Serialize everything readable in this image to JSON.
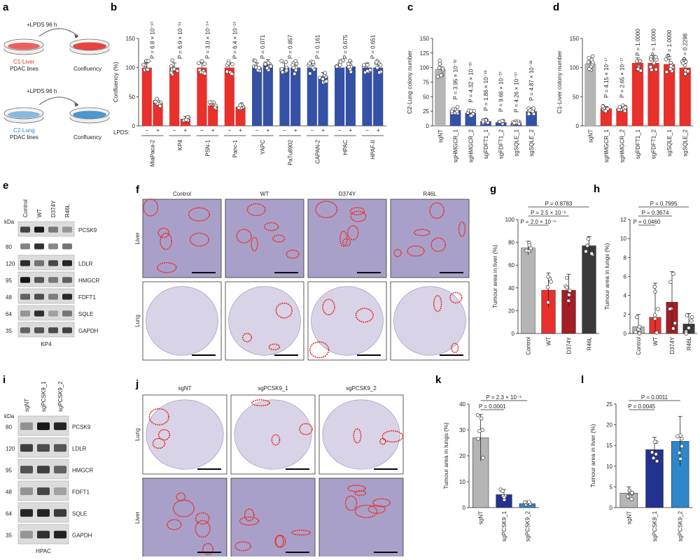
{
  "colors": {
    "red": "#e8302c",
    "blue": "#3451a6",
    "grey": "#b5b5b5",
    "darkred": "#a51e25",
    "darkgrey": "#3a3a3a",
    "navy": "#23318f",
    "lightblue": "#2f86c8",
    "tissue": "#a9a0c9",
    "tissue_light": "#d8d3e6"
  },
  "panel_a": {
    "letter": "a",
    "top": {
      "arrow": "+LPDS 96 h",
      "line1": "C1-Liver",
      "line2": "PDAC lines",
      "result": "Confluency"
    },
    "bottom": {
      "arrow": "+LPDS 96 h",
      "line1": "C2-Lung",
      "line2": "PDAC lines",
      "result": "Confluency"
    }
  },
  "blots": {
    "e": {
      "letter": "e",
      "kda": "kDa",
      "lanes": [
        "Control",
        "WT",
        "D374Y",
        "R46L"
      ],
      "rows": [
        {
          "mw": "",
          "name": "PCSK9"
        },
        {
          "mw": "80",
          "name": ""
        },
        {
          "mw": "120",
          "name": "LDLR"
        },
        {
          "mw": "95",
          "name": "HMGCR"
        },
        {
          "mw": "48",
          "name": "FDFT1"
        },
        {
          "mw": "64",
          "name": "SQLE"
        },
        {
          "mw": "35",
          "name": "GAPDH"
        }
      ],
      "cell": "KP4"
    },
    "i": {
      "letter": "i",
      "kda": "kDa",
      "lanes": [
        "sgNT",
        "sgPCSK9_1",
        "sgPCSK9_2"
      ],
      "rows": [
        {
          "mw": "80",
          "name": "PCSK9"
        },
        {
          "mw": "120",
          "name": "LDLR"
        },
        {
          "mw": "95",
          "name": "HMGCR"
        },
        {
          "mw": "48",
          "name": "FDFT1"
        },
        {
          "mw": "64",
          "name": "SQLE"
        },
        {
          "mw": "35",
          "name": "GAPDH"
        }
      ],
      "cell": "HPAC"
    }
  },
  "histo": {
    "f": {
      "letter": "f",
      "cols": [
        "Control",
        "WT",
        "D374Y",
        "R46L"
      ],
      "rows": [
        "Liver",
        "Lung"
      ]
    },
    "j": {
      "letter": "j",
      "cols": [
        "sgNT",
        "sgPCSK9_1",
        "sgPCSK9_2"
      ],
      "rows": [
        "Lung",
        "Liver"
      ]
    }
  },
  "chart_data": [
    {
      "id": "b",
      "letter": "b",
      "type": "bar",
      "ylabel": "Confluency (%)",
      "ylim": [
        0,
        150
      ],
      "yticks": [
        0,
        50,
        100,
        150
      ],
      "lpds_label": "LPDS:",
      "categories": [
        "MiaPaca-2",
        "KP4",
        "PSN-1",
        "Panc-1",
        "YAPC",
        "PaTu8902",
        "CAPAN-2",
        "HPAC",
        "HPAF-II"
      ],
      "group": [
        "red",
        "red",
        "red",
        "red",
        "blue",
        "blue",
        "blue",
        "blue",
        "blue"
      ],
      "minus": [
        100,
        100,
        100,
        100,
        100,
        100,
        100,
        100,
        100
      ],
      "plus": [
        40,
        12,
        35,
        33,
        105,
        100,
        85,
        102,
        100
      ],
      "pvalues": [
        "P = 6.8 × 10⁻¹³",
        "P = 6.9 × 10⁻¹¹",
        "P = 3.0 × 10⁻¹⁴",
        "P = 6.4 × 10⁻¹³",
        "P = 0.071",
        "P = 0.857",
        "P = 0.161",
        "P = 0.675",
        "P = 0.651"
      ]
    },
    {
      "id": "c",
      "letter": "c",
      "type": "bar",
      "ylabel": "C2-Lung colony number",
      "ylim": [
        0,
        150
      ],
      "yticks": [
        0,
        25,
        50,
        75,
        100,
        125,
        150
      ],
      "categories": [
        "sgNT",
        "sgHMGCR_1",
        "sgHMGCR_2",
        "sgFDFT1_1",
        "sgFDFT1_2",
        "sgSQLE_1",
        "sgSQLE_2"
      ],
      "values": [
        98,
        27,
        22,
        8,
        6,
        5,
        25
      ],
      "colors": [
        "grey",
        "blue",
        "blue",
        "blue",
        "blue",
        "blue",
        "blue"
      ],
      "pvalues": [
        "",
        "P = 3.95 × 10⁻³²",
        "P = 4.32 × 10⁻³³",
        "P = 1.86 × 10⁻³⁶",
        "P = 9.66 × 10⁻³⁷",
        "P = 4.26 × 10⁻³⁷",
        "P = 4.87 × 10⁻³²"
      ]
    },
    {
      "id": "d",
      "letter": "d",
      "type": "bar",
      "ylabel": "C1-Liver colony number",
      "ylim": [
        0,
        150
      ],
      "yticks": [
        0,
        50,
        100,
        150
      ],
      "categories": [
        "sgNT",
        "sgHMGCR_1",
        "sgHMGCR_2",
        "sgFDFT1_1",
        "sgFDFT1_2",
        "sgSQLE_1",
        "sgSQLE_2"
      ],
      "values": [
        107,
        30,
        30,
        108,
        108,
        106,
        100
      ],
      "colors": [
        "grey",
        "red",
        "red",
        "red",
        "red",
        "red",
        "red"
      ],
      "pvalues": [
        "",
        "P = 4.15 × 10⁻¹⁷",
        "P = 2.65 × 10⁻¹⁷",
        "P = 1.0000",
        "P = 1.0000",
        "P = 1.0000",
        "P = 0.2298"
      ]
    },
    {
      "id": "g",
      "letter": "g",
      "type": "bar",
      "ylabel": "Tumour area in liver (%)",
      "ylim": [
        0,
        100
      ],
      "yticks": [
        0,
        20,
        40,
        60,
        80,
        100
      ],
      "categories": [
        "Control",
        "WT",
        "D374Y",
        "R46L"
      ],
      "values": [
        75,
        38,
        38,
        77
      ],
      "errors": [
        6,
        15,
        14,
        8
      ],
      "colors": [
        "grey",
        "red",
        "darkred",
        "darkgrey"
      ],
      "brackets": [
        {
          "from": 0,
          "to": 1,
          "label": "P = 2.0 × 10⁻⁶"
        },
        {
          "from": 0,
          "to": 2,
          "label": "P = 2.5 × 10⁻⁶"
        },
        {
          "from": 0,
          "to": 3,
          "label": "P = 0.8783"
        }
      ]
    },
    {
      "id": "h",
      "letter": "h",
      "type": "bar",
      "ylabel": "Tumour area in lungs (%)",
      "ylim": [
        0,
        12
      ],
      "yticks": [
        0,
        2,
        4,
        6,
        8,
        10,
        12
      ],
      "categories": [
        "Control",
        "WT",
        "D374Y",
        "R46L"
      ],
      "values": [
        0.7,
        1.7,
        3.3,
        1.0
      ],
      "errors": [
        1.3,
        3.6,
        3.2,
        1.1
      ],
      "colors": [
        "grey",
        "red",
        "darkred",
        "darkgrey"
      ],
      "brackets": [
        {
          "from": 0,
          "to": 1,
          "label": "P = 0.0460"
        },
        {
          "from": 0,
          "to": 2,
          "label": "P = 0.3674"
        },
        {
          "from": 0,
          "to": 3,
          "label": "P = 0.7995"
        }
      ]
    },
    {
      "id": "k",
      "letter": "k",
      "type": "bar",
      "ylabel": "Tumour area in lungs (%)",
      "ylim": [
        0,
        40
      ],
      "yticks": [
        0,
        10,
        20,
        30,
        40
      ],
      "categories": [
        "sgNT",
        "sgPCSK9_1",
        "sgPCSK9_2"
      ],
      "values": [
        27,
        5,
        1.5
      ],
      "errors": [
        9,
        2,
        1
      ],
      "colors": [
        "grey",
        "navy",
        "lightblue"
      ],
      "brackets": [
        {
          "from": 0,
          "to": 1,
          "label": "P = 0.0001"
        },
        {
          "from": 0,
          "to": 2,
          "label": "P = 2.3 × 10⁻⁵"
        }
      ]
    },
    {
      "id": "l",
      "letter": "l",
      "type": "bar",
      "ylabel": "Tumour area in liver (%)",
      "ylim": [
        0,
        25
      ],
      "yticks": [
        0,
        5,
        10,
        15,
        20,
        25
      ],
      "categories": [
        "sgNT",
        "sgPCSK9_1",
        "sgPCSK9_2"
      ],
      "values": [
        3.5,
        14,
        16
      ],
      "errors": [
        1.5,
        3,
        6
      ],
      "colors": [
        "grey",
        "navy",
        "lightblue"
      ],
      "brackets": [
        {
          "from": 0,
          "to": 1,
          "label": "P = 0.0045"
        },
        {
          "from": 0,
          "to": 2,
          "label": "P = 0.0011"
        }
      ]
    }
  ]
}
